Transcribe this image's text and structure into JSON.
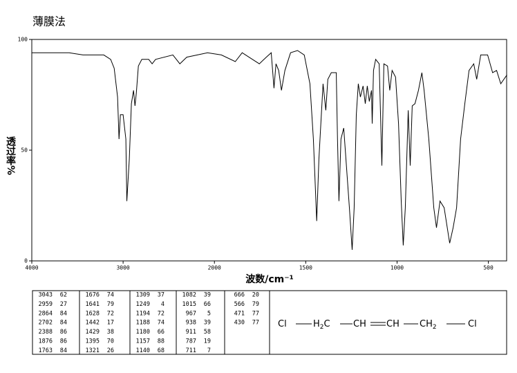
{
  "chart_data": {
    "type": "line",
    "title": "薄膜法",
    "x_label": "波数/cm⁻¹",
    "y_label": "透过率%",
    "x": [
      4000,
      3591,
      3439,
      3212,
      3136,
      3098,
      3061,
      3045,
      3030,
      3000,
      2970,
      2959,
      2932,
      2909,
      2886,
      2870,
      2855,
      2833,
      2795,
      2720,
      2682,
      2644,
      2455,
      2379,
      2303,
      2076,
      1962,
      1886,
      1848,
      1811,
      1754,
      1716,
      1689,
      1674,
      1663,
      1648,
      1633,
      1614,
      1583,
      1545,
      1508,
      1477,
      1458,
      1440,
      1428,
      1420,
      1405,
      1390,
      1379,
      1360,
      1333,
      1326,
      1318,
      1307,
      1292,
      1280,
      1261,
      1246,
      1235,
      1223,
      1212,
      1201,
      1186,
      1174,
      1163,
      1152,
      1140,
      1136,
      1129,
      1117,
      1098,
      1083,
      1072,
      1052,
      1040,
      1027,
      1008,
      992,
      977,
      966,
      955,
      939,
      928,
      917,
      902,
      883,
      864,
      852,
      826,
      799,
      784,
      765,
      742,
      712,
      693,
      674,
      652,
      629,
      606,
      580,
      564,
      542,
      504,
      477,
      455,
      432,
      398
    ],
    "y": [
      94,
      94,
      93,
      93,
      91,
      87,
      74,
      55,
      66,
      66,
      55,
      27,
      46,
      71,
      77,
      70,
      76,
      88,
      91,
      91,
      89,
      91,
      93,
      89,
      92,
      94,
      93,
      90,
      94,
      92,
      89,
      92,
      94,
      78,
      89,
      86,
      77,
      86,
      94,
      95,
      93,
      80,
      55,
      18,
      46,
      58,
      80,
      68,
      82,
      85,
      85,
      55,
      27,
      55,
      60,
      46,
      24,
      5,
      24,
      66,
      80,
      74,
      79,
      71,
      79,
      72,
      77,
      62,
      86,
      91,
      89,
      43,
      89,
      88,
      77,
      86,
      83,
      62,
      27,
      7,
      24,
      68,
      43,
      70,
      71,
      77,
      85,
      77,
      55,
      24,
      15,
      27,
      24,
      8,
      15,
      24,
      55,
      71,
      86,
      89,
      82,
      93,
      93,
      85,
      86,
      80,
      84
    ],
    "color": "#000000",
    "xlim": [
      4000,
      400
    ],
    "xticks": [
      4000,
      3000,
      2000,
      1500,
      1000,
      500
    ],
    "ylim": [
      0,
      100
    ],
    "yticks": [
      0,
      50,
      100
    ]
  },
  "peak_table": [
    [
      [
        "3043",
        "62"
      ],
      [
        "2959",
        "27"
      ],
      [
        "2864",
        "84"
      ],
      [
        "2702",
        "84"
      ],
      [
        "2388",
        "86"
      ],
      [
        "1876",
        "86"
      ],
      [
        "1763",
        "84"
      ]
    ],
    [
      [
        "1676",
        "74"
      ],
      [
        "1641",
        "79"
      ],
      [
        "1628",
        "72"
      ],
      [
        "1442",
        "17"
      ],
      [
        "1429",
        "38"
      ],
      [
        "1395",
        "70"
      ],
      [
        "1321",
        "26"
      ]
    ],
    [
      [
        "1309",
        "37"
      ],
      [
        "1249",
        "4"
      ],
      [
        "1194",
        "72"
      ],
      [
        "1188",
        "74"
      ],
      [
        "1180",
        "66"
      ],
      [
        "1157",
        "88"
      ],
      [
        "1140",
        "68"
      ]
    ],
    [
      [
        "1082",
        "39"
      ],
      [
        "1015",
        "66"
      ],
      [
        "967",
        "5"
      ],
      [
        "938",
        "39"
      ],
      [
        "911",
        "58"
      ],
      [
        "787",
        "19"
      ],
      [
        "711",
        "7"
      ]
    ],
    [
      [
        "666",
        "20"
      ],
      [
        "566",
        "79"
      ],
      [
        "471",
        "77"
      ],
      [
        "430",
        "77"
      ]
    ]
  ],
  "structure": {
    "atoms": [
      {
        "text": "Cl"
      },
      {
        "text": "H",
        "sub": "2",
        "tail": "C"
      },
      {
        "text": "CH"
      },
      {
        "text": "CH"
      },
      {
        "text": "CH",
        "sub": "2"
      },
      {
        "text": "Cl"
      }
    ]
  }
}
